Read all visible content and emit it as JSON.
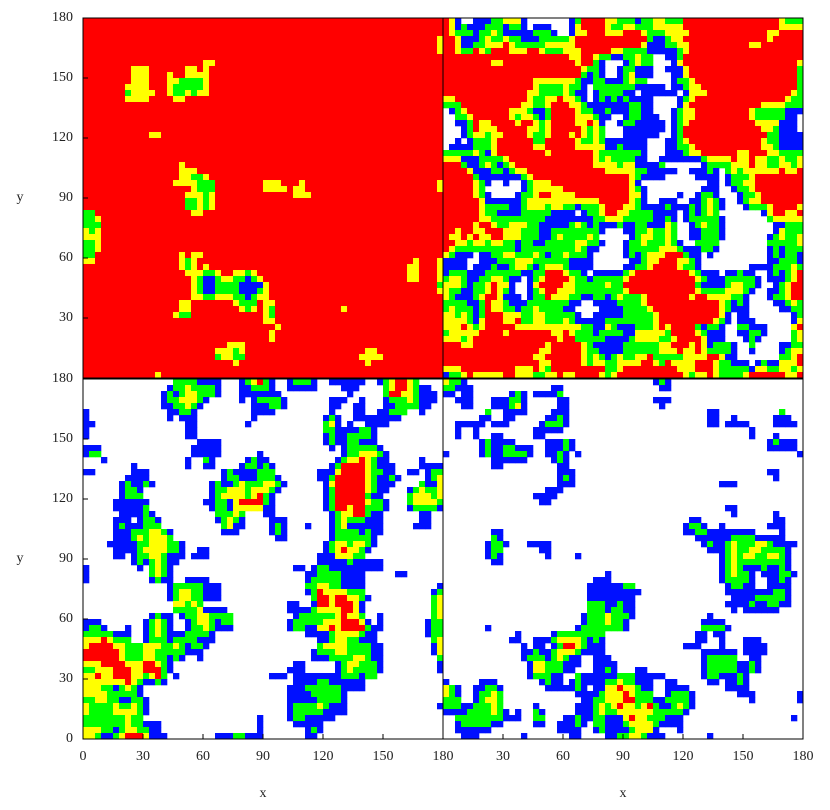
{
  "chart_data": [
    {
      "type": "heatmap",
      "xlim": [
        0,
        180
      ],
      "ylim": [
        0,
        180
      ],
      "yticks": [
        30,
        60,
        90,
        120,
        150,
        180
      ],
      "ylabel": "y"
    },
    {
      "type": "heatmap",
      "xlim": [
        0,
        180
      ],
      "ylim": [
        0,
        180
      ]
    },
    {
      "type": "heatmap",
      "xlim": [
        0,
        180
      ],
      "ylim": [
        0,
        180
      ],
      "xticks": [
        0,
        30,
        60,
        90,
        120,
        150,
        180
      ],
      "yticks": [
        0,
        30,
        60,
        90,
        120,
        150,
        180
      ],
      "xlabel": "x",
      "ylabel": "y"
    },
    {
      "type": "heatmap",
      "xlim": [
        0,
        180
      ],
      "ylim": [
        0,
        180
      ],
      "xticks": [
        30,
        60,
        90,
        120,
        150,
        180
      ],
      "xlabel": "x"
    }
  ]
}
